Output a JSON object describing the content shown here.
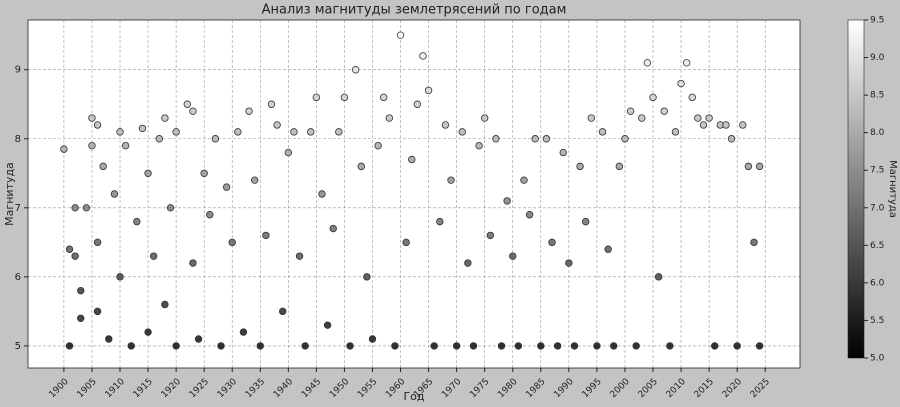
{
  "chart_data": {
    "type": "scatter",
    "title": "Анализ магнитуды землетрясений по годам",
    "x_label": "Год",
    "y_label": "Магнитуда",
    "x": [
      1900,
      1901,
      1901,
      1902,
      1902,
      1903,
      1903,
      1904,
      1905,
      1905,
      1906,
      1906,
      1906,
      1907,
      1908,
      1909,
      1910,
      1910,
      1911,
      1912,
      1913,
      1914,
      1915,
      1915,
      1916,
      1917,
      1918,
      1918,
      1919,
      1920,
      1920,
      1922,
      1923,
      1923,
      1924,
      1925,
      1926,
      1927,
      1928,
      1929,
      1930,
      1931,
      1932,
      1933,
      1934,
      1935,
      1936,
      1937,
      1938,
      1939,
      1940,
      1941,
      1942,
      1943,
      1944,
      1945,
      1946,
      1947,
      1948,
      1949,
      1950,
      1951,
      1952,
      1953,
      1954,
      1955,
      1956,
      1957,
      1958,
      1959,
      1960,
      1961,
      1962,
      1963,
      1964,
      1965,
      1966,
      1967,
      1968,
      1969,
      1970,
      1971,
      1972,
      1973,
      1974,
      1975,
      1976,
      1977,
      1978,
      1979,
      1980,
      1981,
      1982,
      1983,
      1984,
      1985,
      1986,
      1987,
      1988,
      1989,
      1990,
      1991,
      1992,
      1993,
      1994,
      1995,
      1996,
      1997,
      1998,
      1999,
      2000,
      2001,
      2002,
      2003,
      2004,
      2005,
      2006,
      2007,
      2008,
      2009,
      2010,
      2011,
      2012,
      2013,
      2014,
      2015,
      2016,
      2017,
      2018,
      2019,
      2020,
      2021,
      2022,
      2023,
      2024,
      2024
    ],
    "values": [
      7.85,
      5.0,
      6.4,
      7.0,
      6.3,
      5.8,
      5.4,
      7.0,
      8.3,
      7.9,
      8.2,
      6.5,
      5.5,
      7.6,
      5.1,
      7.2,
      8.1,
      6.0,
      7.9,
      5.0,
      6.8,
      8.15,
      7.5,
      5.2,
      6.3,
      8.0,
      8.3,
      5.6,
      7.0,
      8.1,
      5.0,
      8.5,
      8.4,
      6.2,
      5.1,
      7.5,
      6.9,
      8.0,
      5.0,
      7.3,
      6.5,
      8.1,
      5.2,
      8.4,
      7.4,
      5.0,
      6.6,
      8.5,
      8.2,
      5.5,
      7.8,
      8.1,
      6.3,
      5.0,
      8.1,
      8.6,
      7.2,
      5.3,
      6.7,
      8.1,
      8.6,
      5.0,
      9.0,
      7.6,
      6.0,
      5.1,
      7.9,
      8.6,
      8.3,
      5.0,
      9.5,
      6.5,
      7.7,
      8.5,
      9.2,
      8.7,
      5.0,
      6.8,
      8.2,
      7.4,
      5.0,
      8.1,
      6.2,
      5.0,
      7.9,
      8.3,
      6.6,
      8.0,
      5.0,
      7.1,
      6.3,
      5.0,
      7.4,
      6.9,
      8.0,
      5.0,
      8.0,
      6.5,
      5.0,
      7.8,
      6.2,
      5.0,
      7.6,
      6.8,
      8.3,
      5.0,
      8.1,
      6.4,
      5.0,
      7.6,
      8.0,
      8.4,
      5.0,
      8.3,
      9.1,
      8.6,
      6.0,
      8.4,
      5.0,
      8.1,
      8.8,
      9.1,
      8.6,
      8.3,
      8.2,
      8.3,
      5.0,
      8.2,
      8.2,
      8.0,
      5.0,
      8.2,
      7.6,
      6.5,
      7.6,
      5.0
    ],
    "xlim": [
      1893.6,
      2031.2
    ],
    "xticks": [
      1900,
      1905,
      1910,
      1915,
      1920,
      1925,
      1930,
      1935,
      1940,
      1945,
      1950,
      1955,
      1960,
      1965,
      1970,
      1975,
      1980,
      1985,
      1990,
      1995,
      2000,
      2005,
      2010,
      2015,
      2020,
      2025
    ],
    "ylim": [
      4.68,
      9.72
    ],
    "yticks": [
      5,
      6,
      7,
      8,
      9
    ],
    "grid": true,
    "colormap": "gray",
    "clim": [
      5,
      9.5
    ],
    "colorbar_label": "Магнитуда",
    "colorbar_ticks": [
      {
        "value": 5,
        "label": "5.0"
      },
      {
        "value": 5.5,
        "label": "5.5"
      },
      {
        "value": 6,
        "label": "6.0"
      },
      {
        "value": 6.5,
        "label": "6.5"
      },
      {
        "value": 7,
        "label": "7.0"
      },
      {
        "value": 7.5,
        "label": "7.5"
      },
      {
        "value": 8,
        "label": "8.0"
      },
      {
        "value": 8.5,
        "label": "8.5"
      },
      {
        "value": 9,
        "label": "9.0"
      },
      {
        "value": 9.5,
        "label": "9.5"
      }
    ]
  }
}
